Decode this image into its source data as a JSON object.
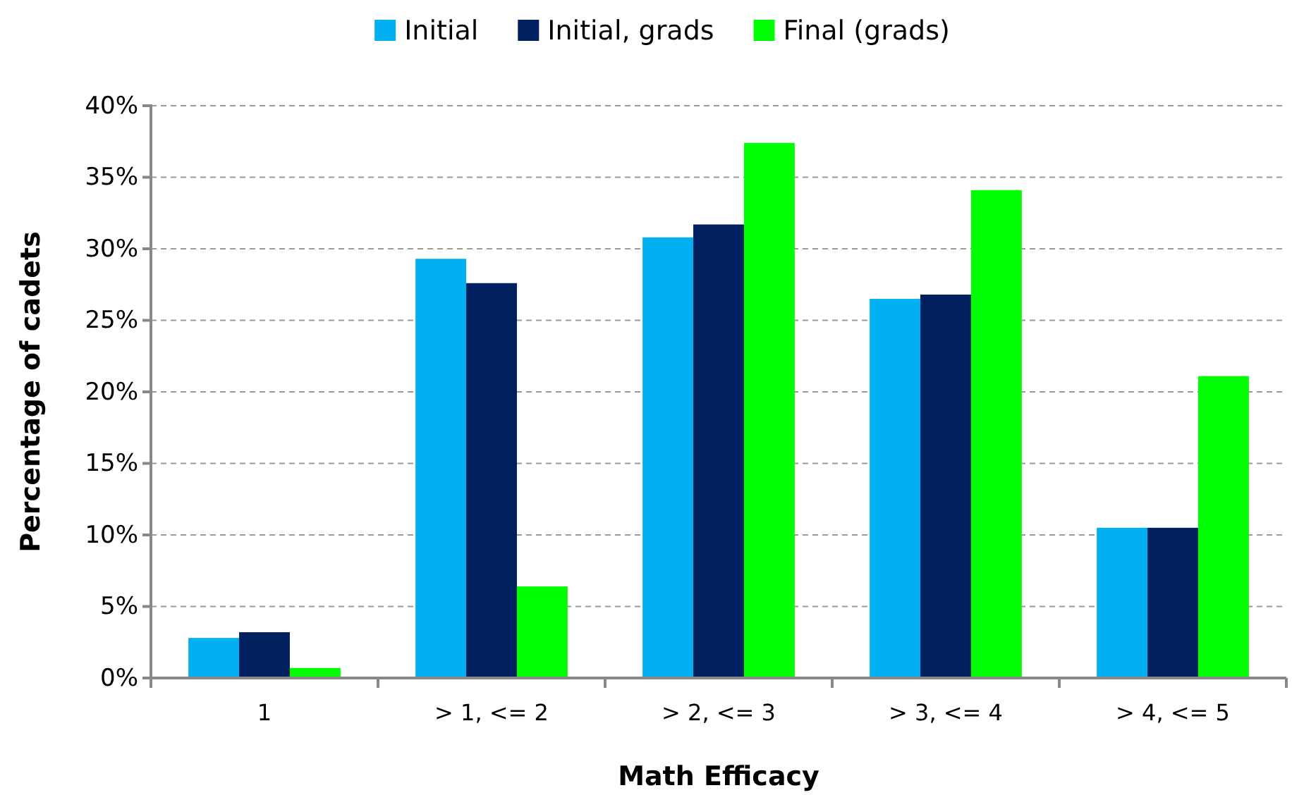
{
  "chart_data": {
    "type": "bar",
    "xlabel": "Math Efficacy",
    "ylabel": "Percentage of cadets",
    "categories": [
      "1",
      "> 1, <= 2",
      "> 2, <= 3",
      "> 3, <= 4",
      "> 4, <= 5"
    ],
    "series": [
      {
        "name": "Initial",
        "color": "#00b0f0",
        "values": [
          2.8,
          29.3,
          30.8,
          26.5,
          10.5
        ]
      },
      {
        "name": "Initial, grads",
        "color": "#002060",
        "values": [
          3.2,
          27.6,
          31.7,
          26.8,
          10.5
        ]
      },
      {
        "name": "Final (grads)",
        "color": "#00ff00",
        "values": [
          0.7,
          6.4,
          37.4,
          34.1,
          21.1
        ]
      }
    ],
    "ylim": [
      0,
      40
    ],
    "yticks": [
      {
        "value": 0,
        "label": "0%"
      },
      {
        "value": 5,
        "label": "5%"
      },
      {
        "value": 10,
        "label": "10%"
      },
      {
        "value": 15,
        "label": "15%"
      },
      {
        "value": 20,
        "label": "20%"
      },
      {
        "value": 25,
        "label": "25%"
      },
      {
        "value": 30,
        "label": "30%"
      },
      {
        "value": 35,
        "label": "35%"
      },
      {
        "value": 40,
        "label": "40%"
      }
    ],
    "grid": "y",
    "legend": "top"
  }
}
